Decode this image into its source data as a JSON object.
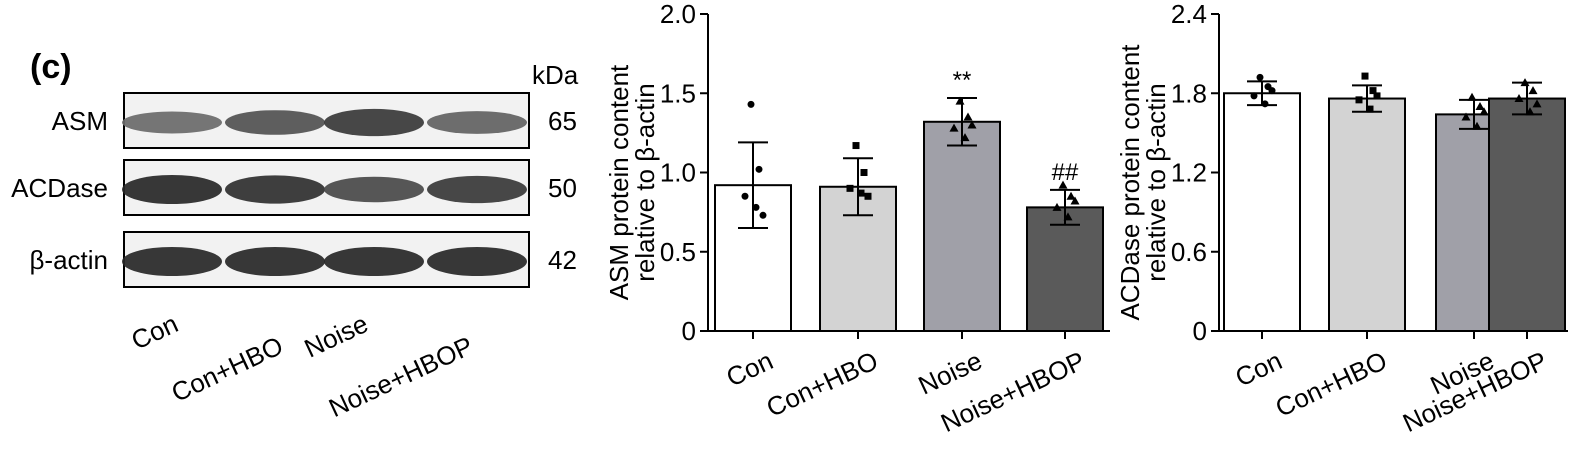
{
  "panel_label": "(c)",
  "blot": {
    "kda_header": "kDa",
    "rows": [
      {
        "label": "ASM",
        "kda": "65",
        "band_intensity": [
          0.55,
          0.7,
          0.85,
          0.6
        ]
      },
      {
        "label": "ACDase",
        "kda": "50",
        "band_intensity": [
          0.95,
          0.9,
          0.75,
          0.85
        ]
      },
      {
        "label": "β-actin",
        "kda": "42",
        "band_intensity": [
          0.95,
          0.95,
          0.95,
          0.95
        ]
      }
    ],
    "lanes": [
      "Con",
      "Con+HBO",
      "Noise",
      "Noise+HBOP"
    ]
  },
  "chart_data": [
    {
      "type": "bar",
      "categories": [
        "Con",
        "Con+HBO",
        "Noise",
        "Noise+HBOP"
      ],
      "values": [
        0.92,
        0.91,
        1.32,
        0.78
      ],
      "error": [
        0.27,
        0.18,
        0.15,
        0.11
      ],
      "points": [
        [
          1.43,
          1.02,
          0.85,
          0.78,
          0.73
        ],
        [
          1.17,
          1.0,
          0.9,
          0.87,
          0.85
        ],
        [
          1.45,
          1.35,
          1.28,
          1.22,
          1.3
        ],
        [
          0.92,
          0.85,
          0.78,
          0.72,
          0.82
        ]
      ],
      "annotations": [
        "",
        "",
        "**",
        "##"
      ],
      "ylabel": [
        "ASM protein content",
        "relative to β-actin"
      ],
      "ylim": [
        0,
        2.0
      ],
      "yticks": [
        0,
        0.5,
        1.0,
        1.5,
        2.0
      ],
      "ytick_labels": [
        "0",
        "0.5",
        "1.0",
        "1.5",
        "2.0"
      ],
      "colors": [
        "#ffffff",
        "#d3d3d3",
        "#a0a0a8",
        "#5a5a5a"
      ]
    },
    {
      "type": "bar",
      "categories": [
        "Con",
        "Con+HBO",
        "Noise",
        "Noise+HBOP"
      ],
      "values": [
        1.8,
        1.76,
        1.64,
        1.76
      ],
      "error": [
        0.09,
        0.1,
        0.11,
        0.12
      ],
      "points": [
        [
          1.92,
          1.85,
          1.78,
          1.72,
          1.82
        ],
        [
          1.93,
          1.82,
          1.75,
          1.68,
          1.78
        ],
        [
          1.77,
          1.7,
          1.62,
          1.55,
          1.66
        ],
        [
          1.88,
          1.82,
          1.76,
          1.66,
          1.72
        ]
      ],
      "annotations": [
        "",
        "",
        "",
        ""
      ],
      "ylabel": [
        "ACDase protein content",
        "relative to β-actin"
      ],
      "ylim": [
        0,
        2.4
      ],
      "yticks": [
        0,
        0.6,
        1.2,
        1.8,
        2.4
      ],
      "ytick_labels": [
        "0",
        "0.6",
        "1.2",
        "1.8",
        "2.4"
      ],
      "colors": [
        "#ffffff",
        "#d3d3d3",
        "#a0a0a8",
        "#5a5a5a"
      ]
    }
  ]
}
